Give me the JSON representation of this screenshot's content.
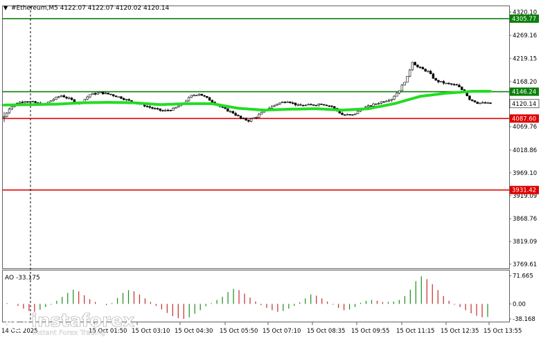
{
  "header": {
    "arrow": "▼",
    "symbol_line": "#Ethereum,M5  4122.07 4122.07 4120.02 4120.14"
  },
  "ao_label": "AO -33.175",
  "watermark": {
    "brand": "instaforex",
    "tagline": "Instant Forex Trading"
  },
  "colors": {
    "green_level": "#0a7f0a",
    "red_level": "#e00000",
    "ma": "#22dd22",
    "candle": "#000000",
    "ao_up": "#1a8c1a",
    "ao_down": "#c62828",
    "grid": "#d0d0d0",
    "frame": "#606060"
  },
  "chart_data": [
    {
      "type": "candlestick",
      "title": "#Ethereum,M5",
      "ohlc_last": {
        "open": 4122.07,
        "high": 4122.07,
        "low": 4120.02,
        "close": 4120.14
      },
      "y_ticks": [
        "4320.10",
        "4269.16",
        "4219.15",
        "4168.20",
        "4069.76",
        "4018.86",
        "3969.10",
        "3919.09",
        "3868.76",
        "3819.09",
        "3769.61"
      ],
      "ylim": [
        3760.3,
        4332.9
      ],
      "levels": [
        {
          "value": 4305.77,
          "label": "4305.77",
          "color": "green"
        },
        {
          "value": 4146.24,
          "label": "4146.24",
          "color": "green"
        },
        {
          "value": 4087.6,
          "label": "4087.60",
          "color": "red"
        },
        {
          "value": 3931.42,
          "label": "3931.42",
          "color": "red"
        }
      ],
      "current_price": {
        "value": 4120.14,
        "label": "4120.14"
      },
      "x_ticks": [
        "14 Oct 2025",
        "15 Oct 01:50",
        "15 Oct 03:10",
        "15 Oct 04:30",
        "15 Oct 05:50",
        "15 Oct 07:10",
        "15 Oct 08:35",
        "15 Oct 09:55",
        "15 Oct 11:15",
        "15 Oct 12:35",
        "15 Oct 13:55"
      ],
      "close_path": [
        [
          0,
          4092
        ],
        [
          2,
          4110
        ],
        [
          5,
          4122
        ],
        [
          8,
          4126
        ],
        [
          12,
          4122
        ],
        [
          15,
          4117
        ],
        [
          19,
          4130
        ],
        [
          22,
          4138
        ],
        [
          26,
          4128
        ],
        [
          29,
          4120
        ],
        [
          33,
          4140
        ],
        [
          37,
          4144
        ],
        [
          41,
          4140
        ],
        [
          45,
          4133
        ],
        [
          49,
          4124
        ],
        [
          53,
          4118
        ],
        [
          57,
          4110
        ],
        [
          61,
          4104
        ],
        [
          65,
          4108
        ],
        [
          69,
          4122
        ],
        [
          72,
          4137
        ],
        [
          75,
          4142
        ],
        [
          80,
          4125
        ],
        [
          84,
          4110
        ],
        [
          88,
          4100
        ],
        [
          91,
          4088
        ],
        [
          94,
          4083
        ],
        [
          97,
          4092
        ],
        [
          101,
          4108
        ],
        [
          105,
          4120
        ],
        [
          109,
          4126
        ],
        [
          113,
          4116
        ],
        [
          118,
          4117
        ],
        [
          122,
          4120
        ],
        [
          126,
          4114
        ],
        [
          130,
          4096
        ],
        [
          134,
          4095
        ],
        [
          138,
          4110
        ],
        [
          142,
          4118
        ],
        [
          145,
          4124
        ],
        [
          149,
          4131
        ],
        [
          152,
          4150
        ],
        [
          155,
          4178
        ],
        [
          157,
          4212
        ],
        [
          159,
          4200
        ],
        [
          163,
          4190
        ],
        [
          166,
          4170
        ],
        [
          170,
          4164
        ],
        [
          174,
          4160
        ],
        [
          177,
          4146
        ],
        [
          179,
          4130
        ],
        [
          182,
          4122
        ],
        [
          185,
          4121
        ],
        [
          187,
          4120.14
        ]
      ],
      "ma_path": [
        [
          0,
          4117
        ],
        [
          20,
          4119
        ],
        [
          30,
          4122
        ],
        [
          40,
          4123
        ],
        [
          50,
          4122
        ],
        [
          60,
          4118
        ],
        [
          70,
          4120
        ],
        [
          80,
          4120
        ],
        [
          90,
          4110
        ],
        [
          100,
          4106
        ],
        [
          110,
          4108
        ],
        [
          120,
          4109
        ],
        [
          130,
          4106
        ],
        [
          140,
          4109
        ],
        [
          150,
          4120
        ],
        [
          160,
          4136
        ],
        [
          170,
          4143
        ],
        [
          180,
          4147
        ],
        [
          187,
          4147
        ]
      ]
    },
    {
      "type": "bar",
      "title": "AO -33.175",
      "current_value": -33.175,
      "y_ticks": [
        "71.665",
        "0.00",
        "-38.168"
      ],
      "ylim": [
        -45,
        85
      ],
      "values": [
        2,
        0,
        -5,
        -12,
        -18,
        -20,
        -15,
        -8,
        -2,
        8,
        18,
        28,
        36,
        32,
        22,
        12,
        5,
        0,
        -3,
        2,
        15,
        28,
        35,
        32,
        24,
        14,
        5,
        -5,
        -14,
        -23,
        -31,
        -36,
        -38,
        -34,
        -25,
        -16,
        -6,
        2,
        10,
        18,
        30,
        38,
        35,
        26,
        16,
        6,
        -3,
        -10,
        -16,
        -20,
        -18,
        -12,
        -5,
        4,
        14,
        24,
        21,
        14,
        6,
        -2,
        -10,
        -16,
        -14,
        -8,
        3,
        8,
        10,
        8,
        5,
        5,
        6,
        10,
        20,
        36,
        58,
        70,
        63,
        50,
        35,
        20,
        8,
        -2,
        -8,
        -16,
        -24,
        -30,
        -34,
        -33
      ]
    }
  ]
}
